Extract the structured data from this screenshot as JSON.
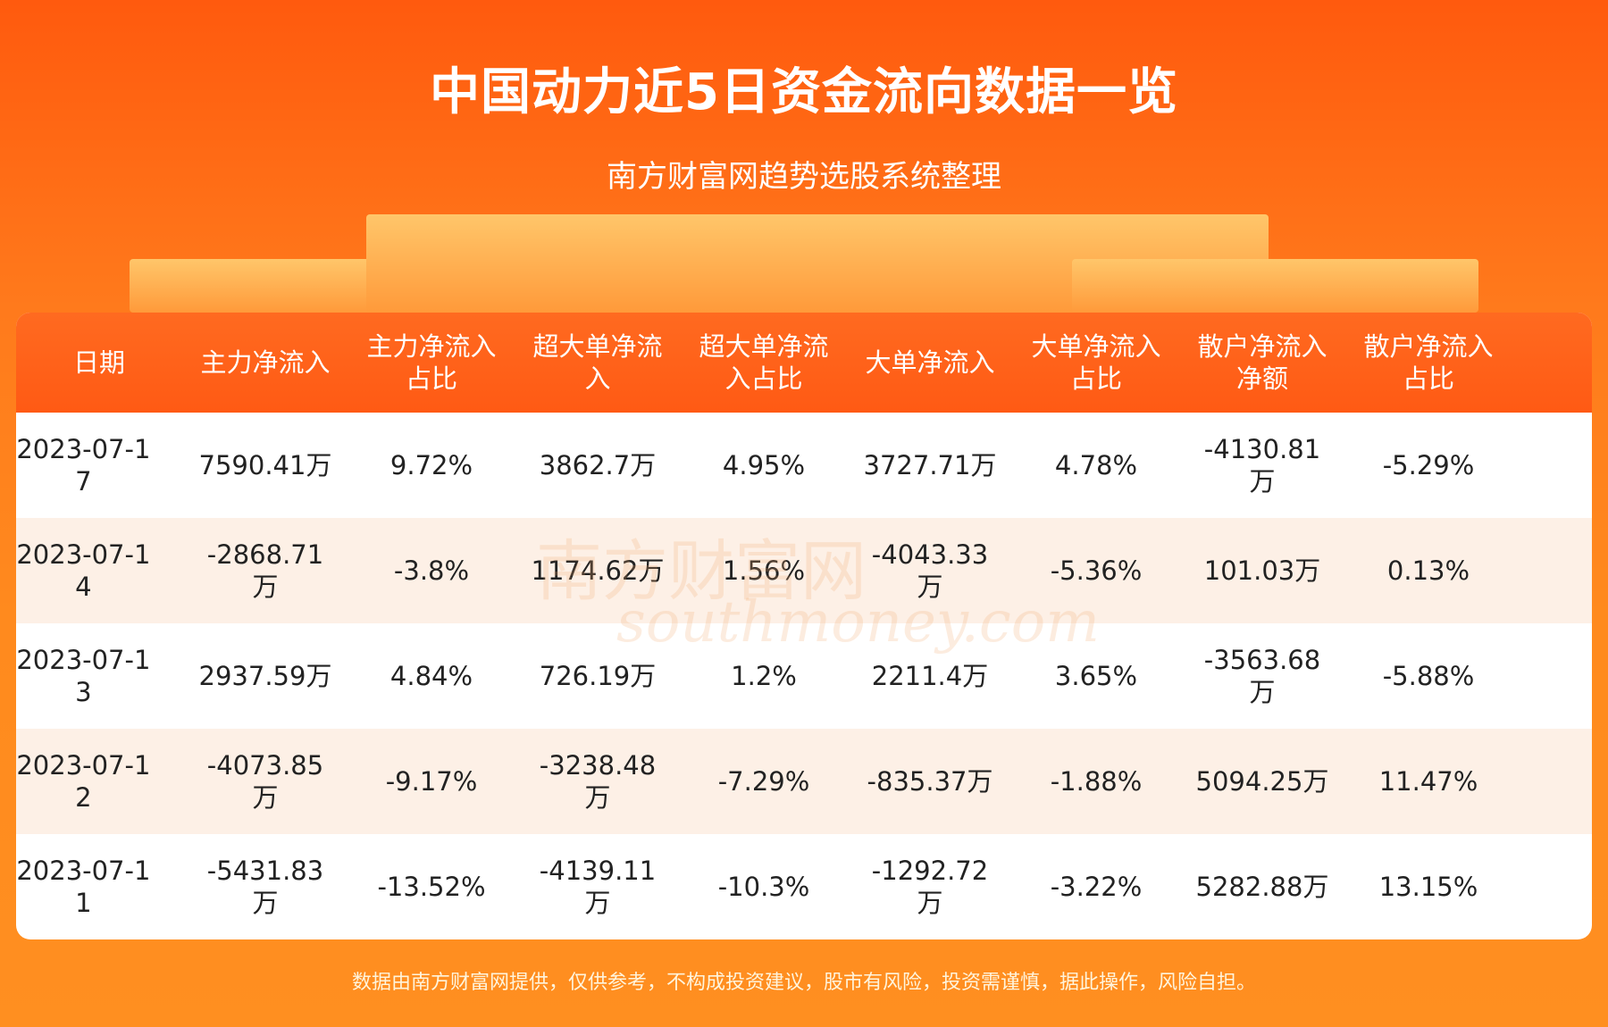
{
  "header": {
    "title": "中国动力近5日资金流向数据一览",
    "subtitle": "南方财富网趋势选股系统整理"
  },
  "table": {
    "columns": [
      "日期",
      "主力净流入",
      "主力净流入占比",
      "超大单净流入",
      "超大单净流入占比",
      "大单净流入",
      "大单净流入占比",
      "散户净流入净额",
      "散户净流入占比"
    ],
    "rows": [
      [
        "2023-07-17",
        "7590.41万",
        "9.72%",
        "3862.7万",
        "4.95%",
        "3727.71万",
        "4.78%",
        "-4130.81万",
        "-5.29%"
      ],
      [
        "2023-07-14",
        "-2868.71万",
        "-3.8%",
        "1174.62万",
        "1.56%",
        "-4043.33万",
        "-5.36%",
        "101.03万",
        "0.13%"
      ],
      [
        "2023-07-13",
        "2937.59万",
        "4.84%",
        "726.19万",
        "1.2%",
        "2211.4万",
        "3.65%",
        "-3563.68万",
        "-5.88%"
      ],
      [
        "2023-07-12",
        "-4073.85万",
        "-9.17%",
        "-3238.48万",
        "-7.29%",
        "-835.37万",
        "-1.88%",
        "5094.25万",
        "11.47%"
      ],
      [
        "2023-07-11",
        "-5431.83万",
        "-13.52%",
        "-4139.11万",
        "-10.3%",
        "-1292.72万",
        "-3.22%",
        "5282.88万",
        "13.15%"
      ]
    ]
  },
  "watermark": {
    "cn": "南方财富网",
    "en": "southmoney.com"
  },
  "footer": "数据由南方财富网提供，仅供参考，不构成投资建议，股市有风险，投资需谨慎，据此操作，风险自担。"
}
